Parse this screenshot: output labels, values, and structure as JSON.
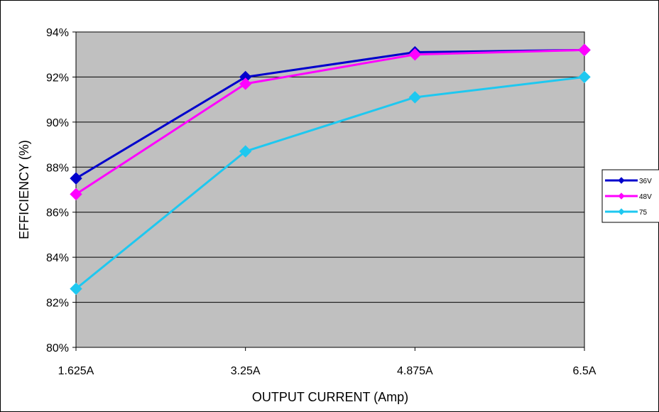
{
  "chart_data": {
    "type": "line",
    "categories": [
      "1.625A",
      "3.25A",
      "4.875A",
      "6.5A"
    ],
    "series": [
      {
        "name": "36V",
        "values": [
          87.5,
          92.0,
          93.1,
          93.2
        ],
        "color": "#0000cc"
      },
      {
        "name": "48V",
        "values": [
          86.8,
          91.7,
          93.0,
          93.2
        ],
        "color": "#ff00ff"
      },
      {
        "name": "75",
        "values": [
          82.6,
          88.7,
          91.1,
          92.0
        ],
        "color": "#1ec8f0"
      }
    ],
    "ylim": [
      80,
      94
    ],
    "yticks": [
      "80%",
      "82%",
      "84%",
      "86%",
      "88%",
      "90%",
      "92%",
      "94%"
    ],
    "ytick_values": [
      80,
      82,
      84,
      86,
      88,
      90,
      92,
      94
    ],
    "xlabel": "OUTPUT CURRENT (Amp)",
    "ylabel": "EFFICIENCY (%)",
    "grid": "horizontal",
    "plot_background": "#c0c0c0",
    "legend_position": "right"
  }
}
